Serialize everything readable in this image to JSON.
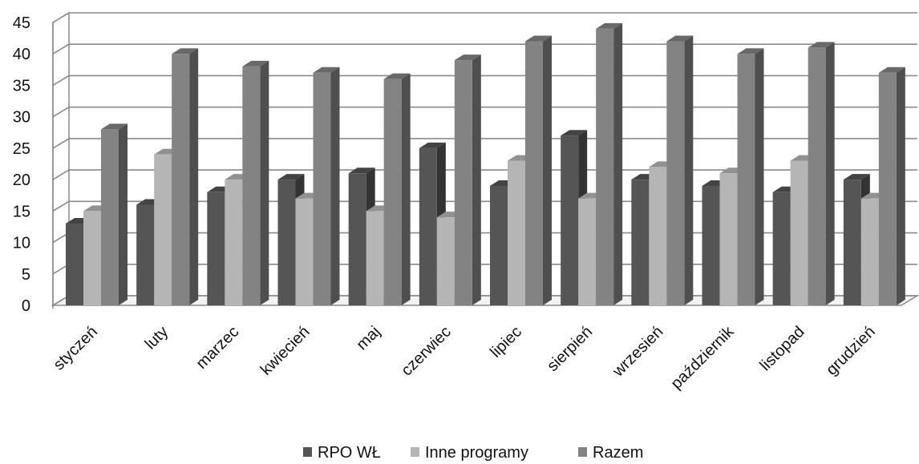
{
  "chart_data": {
    "type": "bar",
    "title": "",
    "xlabel": "",
    "ylabel": "",
    "ylim": [
      0,
      45
    ],
    "y_ticks": [
      "0",
      "5",
      "10",
      "15",
      "20",
      "25",
      "30",
      "35",
      "40",
      "45"
    ],
    "grid": true,
    "legend_position": "bottom",
    "categories": [
      "styczeń",
      "luty",
      "marzec",
      "kwiecień",
      "maj",
      "czerwiec",
      "lipiec",
      "sierpień",
      "wrzesień",
      "październik",
      "listopad",
      "grudzień"
    ],
    "series": [
      {
        "name": "RPO WŁ",
        "color": "#555555",
        "values": [
          13,
          16,
          18,
          20,
          21,
          25,
          19,
          27,
          20,
          19,
          18,
          20
        ]
      },
      {
        "name": "Inne programy",
        "color": "#b5b5b5",
        "values": [
          15,
          24,
          20,
          17,
          15,
          14,
          23,
          17,
          22,
          21,
          23,
          17
        ]
      },
      {
        "name": "Razem",
        "color": "#838383",
        "values": [
          28,
          40,
          38,
          37,
          36,
          39,
          42,
          44,
          42,
          40,
          41,
          37
        ]
      }
    ]
  }
}
